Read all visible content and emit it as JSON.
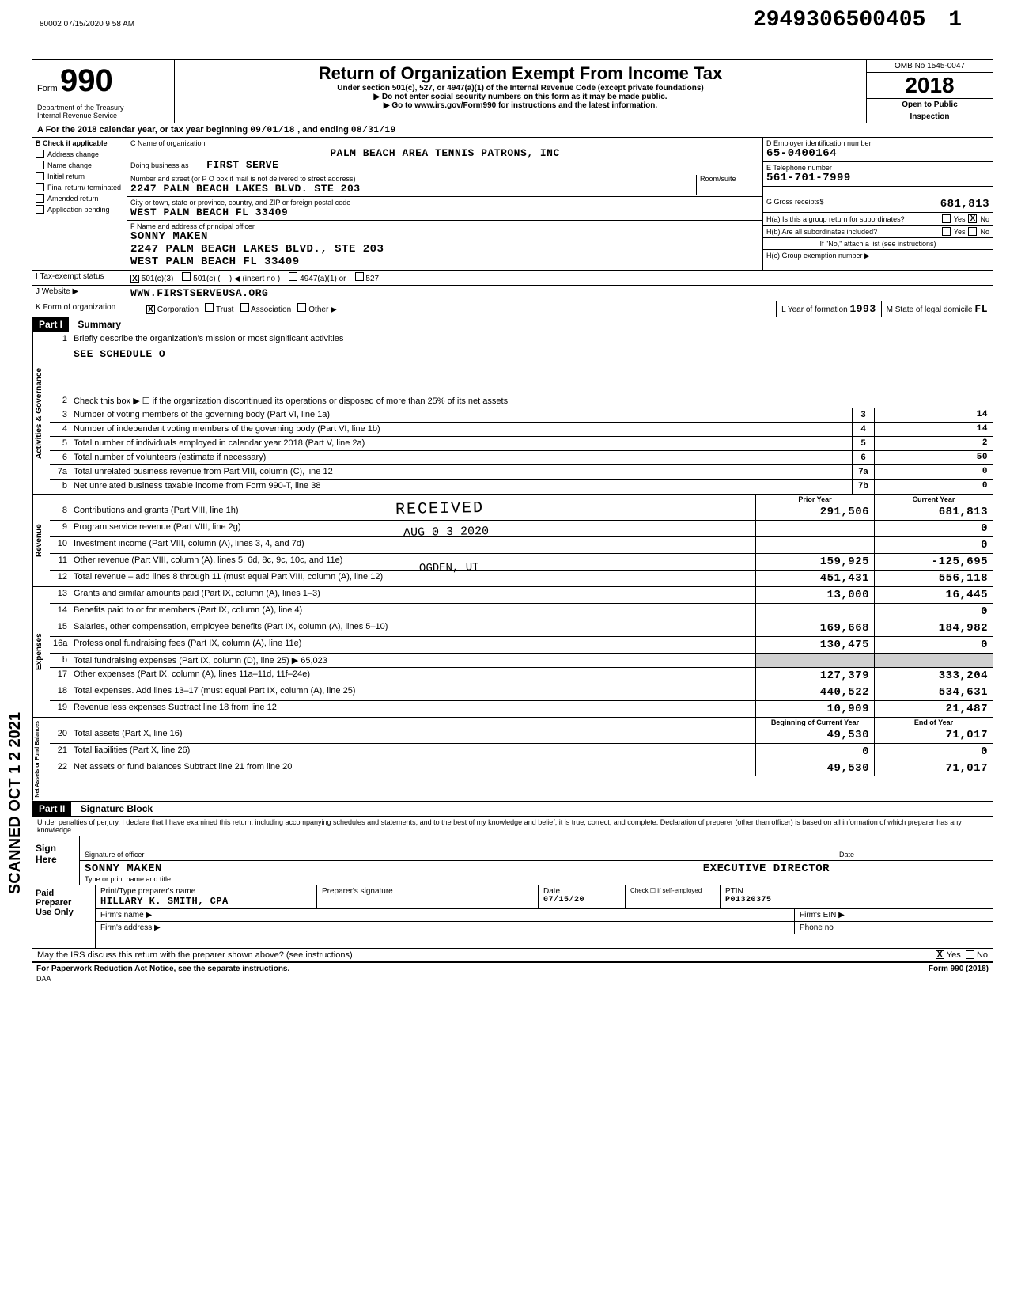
{
  "page_header": {
    "footer_id": "80002 07/15/2020 9 58 AM",
    "dln": "2949306500405",
    "dln_suffix": "1"
  },
  "title_block": {
    "form_word": "Form",
    "form_number": "990",
    "main_title": "Return of Organization Exempt From Income Tax",
    "subtitle": "Under section 501(c), 527, or 4947(a)(1) of the Internal Revenue Code (except private foundations)",
    "instr1": "▶ Do not enter social security numbers on this form as it may be made public.",
    "instr2": "▶ Go to www.irs.gov/Form990 for instructions and the latest information.",
    "dept": "Department of the Treasury",
    "irs": "Internal Revenue Service",
    "omb": "OMB No 1545-0047",
    "year": "2018",
    "open1": "Open to Public",
    "open2": "Inspection"
  },
  "period": {
    "prefix": "A   For the 2018 calendar year, or tax year beginning",
    "begin": "09/01/18",
    "mid": ", and ending",
    "end": "08/31/19"
  },
  "col_b": {
    "header": "B  Check if applicable",
    "items": [
      "Address change",
      "Name change",
      "Initial return",
      "Final return/ terminated",
      "Amended return",
      "Application pending"
    ]
  },
  "col_c": {
    "label_name": "C  Name of organization",
    "org_name": "PALM BEACH AREA TENNIS PATRONS, INC",
    "dba_label": "Doing business as",
    "dba": "FIRST SERVE",
    "addr_label": "Number and street (or P O box if mail is not delivered to street address)",
    "room_label": "Room/suite",
    "address": "2247 PALM BEACH LAKES BLVD. STE 203",
    "city_label": "City or town, state or province, country, and ZIP or foreign postal code",
    "city": "WEST PALM BEACH          FL 33409",
    "officer_label": "F  Name and address of principal officer",
    "officer_name": "SONNY MAKEN",
    "officer_addr1": "2247 PALM BEACH LAKES BLVD., STE 203",
    "officer_addr2": "WEST PALM BEACH          FL 33409"
  },
  "col_d": {
    "ein_label": "D Employer identification number",
    "ein": "65-0400164",
    "tel_label": "E Telephone number",
    "tel": "561-701-7999",
    "gross_label": "G Gross receipts$",
    "gross": "681,813",
    "ha_label": "H(a) Is this a group return for subordinates?",
    "hb_label": "H(b) Are all subordinates included?",
    "hb_note": "If \"No,\" attach a list (see instructions)",
    "hc_label": "H(c) Group exemption number ▶",
    "yes": "Yes",
    "no": "No"
  },
  "status": {
    "i_label": "I    Tax-exempt status",
    "opt1": "501(c)(3)",
    "opt2": "501(c)",
    "opt2_insert": "◀ (insert no )",
    "opt3": "4947(a)(1) or",
    "opt4": "527"
  },
  "website": {
    "j_label": "J    Website ▶",
    "url": "WWW.FIRSTSERVEUSA.ORG"
  },
  "org_form": {
    "k_label": "K   Form of organization",
    "opt1": "Corporation",
    "opt2": "Trust",
    "opt3": "Association",
    "opt4": "Other ▶",
    "l_label": "L  Year of formation",
    "l_val": "1993",
    "m_label": "M  State of legal domicile",
    "m_val": "FL"
  },
  "part1": {
    "header": "Part I",
    "title": "Summary"
  },
  "governance": {
    "vert_label": "Activities & Governance",
    "line1_text": "Briefly describe the organization's mission or most significant activities",
    "line1_val": "SEE SCHEDULE O",
    "line2_text": "Check this box ▶ ☐  if the organization discontinued its operations or disposed of more than 25% of its net assets",
    "line3_text": "Number of voting members of the governing body (Part VI, line 1a)",
    "line3_val": "14",
    "line4_text": "Number of independent voting members of the governing body (Part VI, line 1b)",
    "line4_val": "14",
    "line5_text": "Total number of individuals employed in calendar year 2018 (Part V, line 2a)",
    "line5_val": "2",
    "line6_text": "Total number of volunteers (estimate if necessary)",
    "line6_val": "50",
    "line7a_text": "Total unrelated business revenue from Part VIII, column (C), line 12",
    "line7a_val": "0",
    "line7b_text": "Net unrelated business taxable income from Form 990-T, line 38",
    "line7b_val": "0"
  },
  "col_headers": {
    "prior": "Prior Year",
    "current": "Current Year"
  },
  "revenue": {
    "vert_label": "Revenue",
    "rows": [
      {
        "num": "8",
        "text": "Contributions and grants (Part VIII, line 1h)",
        "prior": "291,506",
        "current": "681,813"
      },
      {
        "num": "9",
        "text": "Program service revenue (Part VIII, line 2g)",
        "prior": "",
        "current": "0"
      },
      {
        "num": "10",
        "text": "Investment income (Part VIII, column (A), lines 3, 4, and 7d)",
        "prior": "",
        "current": "0"
      },
      {
        "num": "11",
        "text": "Other revenue (Part VIII, column (A), lines 5, 6d, 8c, 9c, 10c, and 11e)",
        "prior": "159,925",
        "current": "-125,695"
      },
      {
        "num": "12",
        "text": "Total revenue – add lines 8 through 11 (must equal Part VIII, column (A), line 12)",
        "prior": "451,431",
        "current": "556,118"
      }
    ]
  },
  "expenses": {
    "vert_label": "Expenses",
    "rows": [
      {
        "num": "13",
        "text": "Grants and similar amounts paid (Part IX, column (A), lines 1–3)",
        "prior": "13,000",
        "current": "16,445"
      },
      {
        "num": "14",
        "text": "Benefits paid to or for members (Part IX, column (A), line 4)",
        "prior": "",
        "current": "0"
      },
      {
        "num": "15",
        "text": "Salaries, other compensation, employee benefits (Part IX, column (A), lines 5–10)",
        "prior": "169,668",
        "current": "184,982"
      },
      {
        "num": "16a",
        "text": "Professional fundraising fees (Part IX, column (A), line 11e)",
        "prior": "130,475",
        "current": "0"
      },
      {
        "num": "b",
        "text": "Total fundraising expenses (Part IX, column (D), line 25) ▶             65,023",
        "prior": "",
        "current": "",
        "shaded": true
      },
      {
        "num": "17",
        "text": "Other expenses (Part IX, column (A), lines 11a–11d, 11f–24e)",
        "prior": "127,379",
        "current": "333,204"
      },
      {
        "num": "18",
        "text": "Total expenses. Add lines 13–17 (must equal Part IX, column (A), line 25)",
        "prior": "440,522",
        "current": "534,631"
      },
      {
        "num": "19",
        "text": "Revenue less expenses  Subtract line 18 from line 12",
        "prior": "10,909",
        "current": "21,487"
      }
    ]
  },
  "net_assets": {
    "vert_label": "Net Assets or Fund Balances",
    "header_a": "Beginning of Current Year",
    "header_b": "End of Year",
    "rows": [
      {
        "num": "20",
        "text": "Total assets (Part X, line 16)",
        "a": "49,530",
        "b": "71,017"
      },
      {
        "num": "21",
        "text": "Total liabilities (Part X, line 26)",
        "a": "0",
        "b": "0"
      },
      {
        "num": "22",
        "text": "Net assets or fund balances  Subtract line 21 from line 20",
        "a": "49,530",
        "b": "71,017"
      }
    ]
  },
  "part2": {
    "header": "Part II",
    "title": "Signature Block",
    "perjury": "Under penalties of perjury, I declare that I have examined this return, including accompanying schedules and statements, and to the best of my knowledge and belief, it is true, correct, and complete. Declaration of preparer (other than officer) is based on all information of which preparer has any knowledge"
  },
  "sign": {
    "label1": "Sign",
    "label2": "Here",
    "sig_of_officer": "Signature of officer",
    "date_label": "Date",
    "name": "SONNY MAKEN",
    "title": "EXECUTIVE DIRECTOR",
    "name_label": "Type or print name and title"
  },
  "paid": {
    "label1": "Paid",
    "label2": "Preparer",
    "label3": "Use Only",
    "col1": "Print/Type preparer's name",
    "col2": "Preparer's signature",
    "col3": "Date",
    "col4_check": "Check ☐ if self-employed",
    "col5": "PTIN",
    "name": "HILLARY K. SMITH, CPA",
    "date": "07/15/20",
    "ptin": "P01320375",
    "firm_name_label": "Firm's name    ▶",
    "firm_ein_label": "Firm's EIN ▶",
    "firm_addr_label": "Firm's address  ▶",
    "phone_label": "Phone no"
  },
  "discuss": {
    "text": "May the IRS discuss this return with the preparer shown above? (see instructions)",
    "yes": "Yes",
    "no": "No"
  },
  "footer": {
    "left": "For Paperwork Reduction Act Notice, see the separate instructions.",
    "daa": "DAA",
    "right": "Form 990 (2018)"
  },
  "stamps": {
    "received": "RECEIVED",
    "received_date": "AUG 0 3 2020",
    "received_place": "OGDEN, UT",
    "scanned": "SCANNED OCT 1 2 2021"
  }
}
